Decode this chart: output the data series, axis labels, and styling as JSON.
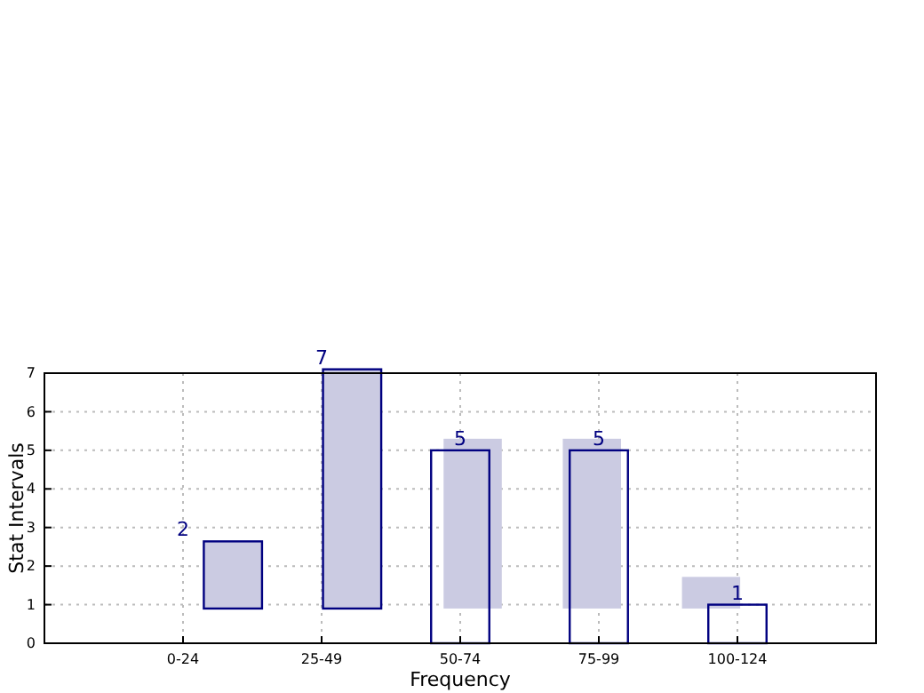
{
  "chart_data": {
    "type": "bar",
    "xlabel": "Frequency",
    "ylabel": "Stat Intervals",
    "categories": [
      "0-24",
      "25-49",
      "50-74",
      "75-99",
      "100-124"
    ],
    "ylim": [
      0,
      7
    ],
    "yticks": [
      0,
      1,
      2,
      3,
      4,
      5,
      6,
      7
    ],
    "grid": true,
    "series": [
      {
        "color": "#cbcbe2",
        "base": [
          0.9,
          0.9,
          0.9,
          0.9,
          0.9
        ],
        "values": [
          1.74,
          6.2,
          4.4,
          4.4,
          0.82
        ]
      },
      {
        "color": "#000080",
        "values": [
          null,
          null,
          5,
          5,
          1
        ]
      }
    ],
    "annotations": [
      "2",
      "7",
      "5",
      "5",
      "1"
    ]
  }
}
